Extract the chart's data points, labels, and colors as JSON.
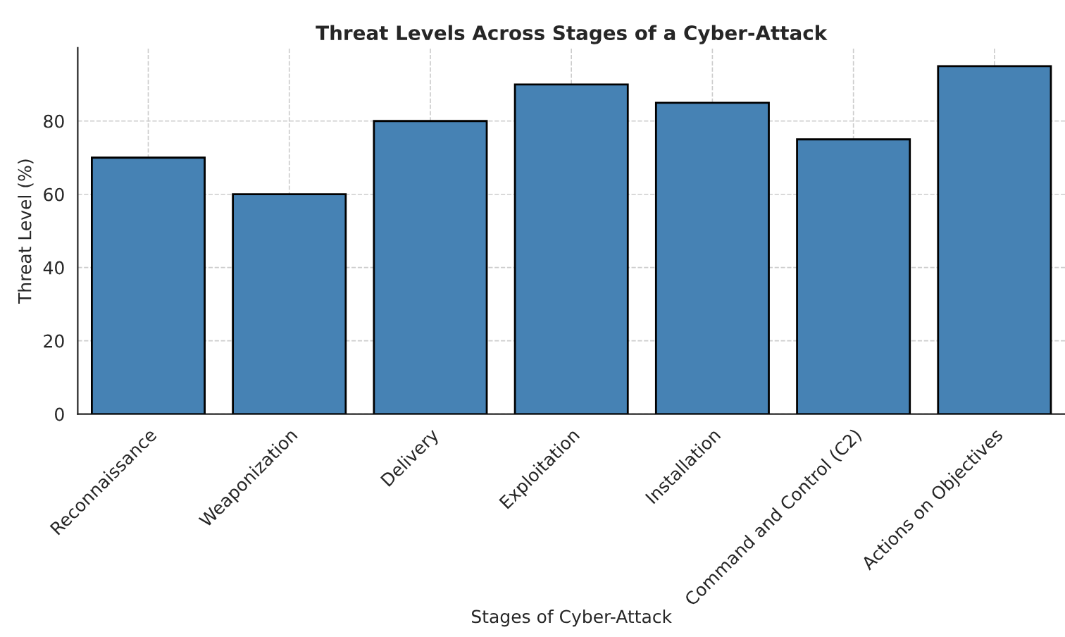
{
  "chart_data": {
    "type": "bar",
    "title": "Threat Levels Across Stages of a Cyber-Attack",
    "xlabel": "Stages of Cyber-Attack",
    "ylabel": "Threat Level (%)",
    "categories": [
      "Reconnaissance",
      "Weaponization",
      "Delivery",
      "Exploitation",
      "Installation",
      "Command and Control (C2)",
      "Actions on Objectives"
    ],
    "values": [
      70,
      60,
      80,
      90,
      85,
      75,
      95
    ],
    "color": "#4682b4",
    "ylim": [
      0,
      100
    ],
    "yticks": [
      0,
      20,
      40,
      60,
      80
    ],
    "grid": true
  }
}
